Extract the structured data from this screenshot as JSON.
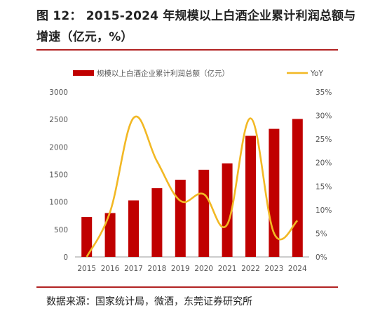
{
  "header": {
    "title": "图 12： 2015-2024 年规模以上白酒企业累计利润总额与增速（亿元，%）"
  },
  "footer": {
    "source": "数据来源：国家统计局，微酒，东莞证券研究所"
  },
  "colors": {
    "bar": "#c00000",
    "line": "#f2b824",
    "rule": "#b22222"
  },
  "chart_data": {
    "type": "bar",
    "categories": [
      "2015",
      "2016",
      "2017",
      "2018",
      "2019",
      "2020",
      "2021",
      "2022",
      "2023",
      "2024"
    ],
    "series": [
      {
        "name": "规模以上白酒企业累计利润总额（亿元）",
        "type": "bar",
        "axis": "left",
        "values": [
          727,
          798,
          1028,
          1250,
          1404,
          1585,
          1702,
          2202,
          2329,
          2509
        ]
      },
      {
        "name": "YoY",
        "type": "line",
        "axis": "right",
        "values": [
          0.0,
          9.6,
          29.5,
          20.3,
          11.9,
          13.3,
          6.9,
          29.4,
          5.0,
          7.7
        ]
      }
    ],
    "y_left": {
      "lim": [
        0,
        3000
      ],
      "ticks": [
        "0",
        "500",
        "1000",
        "1500",
        "2000",
        "2500",
        "3000"
      ]
    },
    "y_right": {
      "lim": [
        0,
        35
      ],
      "ticks": [
        "0%",
        "5%",
        "10%",
        "15%",
        "20%",
        "25%",
        "30%",
        "35%"
      ]
    },
    "grid": false,
    "legend_position": "top"
  }
}
